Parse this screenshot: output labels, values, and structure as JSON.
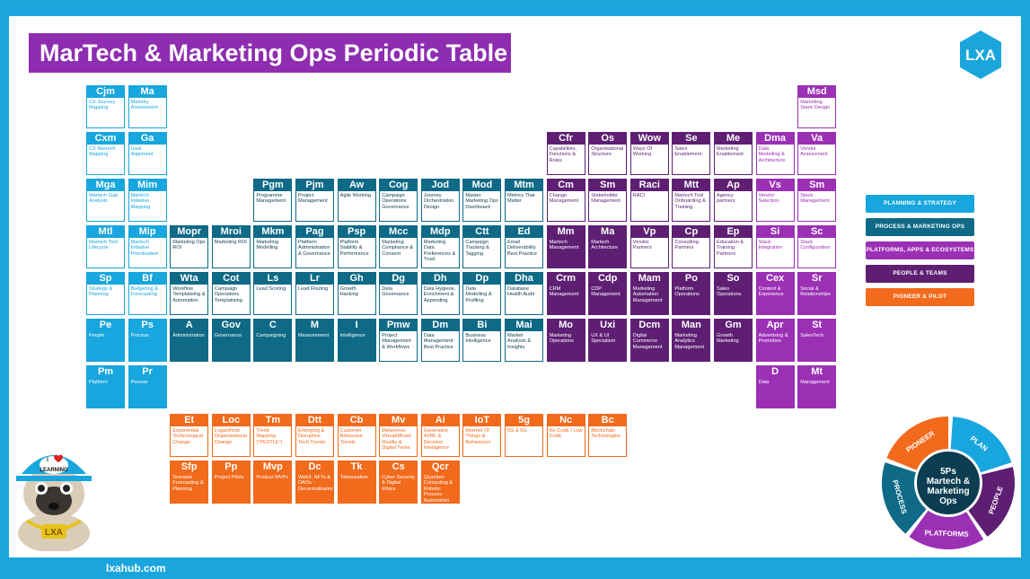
{
  "title": "MarTech & Marketing Ops Periodic Table",
  "logo_text": "LXA",
  "footer": "lxahub.com",
  "colors": {
    "planning": "#17a6dd",
    "process": "#0e6a86",
    "platforms": "#9b30b5",
    "people": "#5e1f73",
    "pioneer": "#f26a1b"
  },
  "legend": [
    {
      "label": "PLANNING & STRATEGY",
      "cat": "plan"
    },
    {
      "label": "PROCESS & MARKETING OPS",
      "cat": "proc"
    },
    {
      "label": "PLATFORMS, APPS & ECOSYSTEMS",
      "cat": "plat"
    },
    {
      "label": "PEOPLE & TEAMS",
      "cat": "ppl"
    },
    {
      "label": "PIONEER & PILOT",
      "cat": "pion"
    }
  ],
  "wheel": {
    "center": [
      "5Ps",
      "Martech &",
      "Marketing",
      "Ops"
    ],
    "segments": [
      "PIONEER",
      "PLAN",
      "PEOPLE",
      "PLATFORMS",
      "PROCESS"
    ]
  },
  "mascot": {
    "cap_line1": "I",
    "cap_line2": "LEARNING",
    "chain": "LXA",
    "cap_icon": "heart-icon"
  },
  "elements": [
    {
      "sym": "Cjm",
      "name": "CX Journey Mapping",
      "cat": "plan",
      "col": 0,
      "row": 0
    },
    {
      "sym": "Ma",
      "name": "Maturity Assessment",
      "cat": "plan",
      "col": 1,
      "row": 0
    },
    {
      "sym": "Msd",
      "name": "Marketing Stack Design",
      "cat": "plat",
      "col": 17,
      "row": 0
    },
    {
      "sym": "Cxm",
      "name": "CX Martech Mapping",
      "cat": "plan",
      "col": 0,
      "row": 1
    },
    {
      "sym": "Ga",
      "name": "Goal Alignment",
      "cat": "plan",
      "col": 1,
      "row": 1
    },
    {
      "sym": "Cfr",
      "name": "Capabilities, Functions & Roles",
      "cat": "ppl",
      "col": 11,
      "row": 1
    },
    {
      "sym": "Os",
      "name": "Organisational Structure",
      "cat": "ppl",
      "col": 12,
      "row": 1
    },
    {
      "sym": "Wow",
      "name": "Ways Of Working",
      "cat": "ppl",
      "col": 13,
      "row": 1
    },
    {
      "sym": "Se",
      "name": "Sales Enablement",
      "cat": "ppl",
      "col": 14,
      "row": 1
    },
    {
      "sym": "Me",
      "name": "Marketing Enablement",
      "cat": "ppl",
      "col": 15,
      "row": 1
    },
    {
      "sym": "Dma",
      "name": "Data Modelling & Architecture",
      "cat": "plat",
      "col": 16,
      "row": 1
    },
    {
      "sym": "Va",
      "name": "Vendor Assessment",
      "cat": "plat",
      "col": 17,
      "row": 1
    },
    {
      "sym": "Mga",
      "name": "Martech Gap Analysis",
      "cat": "plan",
      "col": 0,
      "row": 2
    },
    {
      "sym": "Mim",
      "name": "Martech Initiative Mapping",
      "cat": "plan",
      "col": 1,
      "row": 2
    },
    {
      "sym": "Pgm",
      "name": "Programme Management",
      "cat": "proc",
      "col": 4,
      "row": 2
    },
    {
      "sym": "Pjm",
      "name": "Project Management",
      "cat": "proc",
      "col": 5,
      "row": 2
    },
    {
      "sym": "Aw",
      "name": "Agile Working",
      "cat": "proc",
      "col": 6,
      "row": 2
    },
    {
      "sym": "Cog",
      "name": "Campaign Operations Governance",
      "cat": "proc",
      "col": 7,
      "row": 2
    },
    {
      "sym": "Jod",
      "name": "Journey Orchestration Design",
      "cat": "proc",
      "col": 8,
      "row": 2
    },
    {
      "sym": "Mod",
      "name": "Master Marketing Ops Dashboard",
      "cat": "proc",
      "col": 9,
      "row": 2
    },
    {
      "sym": "Mtm",
      "name": "Metrics That Matter",
      "cat": "proc",
      "col": 10,
      "row": 2
    },
    {
      "sym": "Cm",
      "name": "Change Management",
      "cat": "ppl",
      "col": 11,
      "row": 2
    },
    {
      "sym": "Sm",
      "name": "Stakeholder Management",
      "cat": "ppl",
      "col": 12,
      "row": 2
    },
    {
      "sym": "Raci",
      "name": "RACI",
      "cat": "ppl",
      "col": 13,
      "row": 2
    },
    {
      "sym": "Mtt",
      "name": "Martech Tool Onboarding & Training",
      "cat": "ppl",
      "col": 14,
      "row": 2
    },
    {
      "sym": "Ap",
      "name": "Agency partners",
      "cat": "ppl",
      "col": 15,
      "row": 2
    },
    {
      "sym": "Vs",
      "name": "Vendor Selection",
      "cat": "plat",
      "col": 16,
      "row": 2
    },
    {
      "sym": "Sm",
      "name": "Stack Management",
      "cat": "plat",
      "col": 17,
      "row": 2
    },
    {
      "sym": "Mtl",
      "name": "Martech Tool Lifecycle",
      "cat": "plan",
      "col": 0,
      "row": 3
    },
    {
      "sym": "Mip",
      "name": "Martech Initiative Prioritisation",
      "cat": "plan",
      "col": 1,
      "row": 3
    },
    {
      "sym": "Mopr",
      "name": "Marketing Ops ROI",
      "cat": "proc",
      "col": 2,
      "row": 3
    },
    {
      "sym": "Mroi",
      "name": "Marketing ROI",
      "cat": "proc",
      "col": 3,
      "row": 3
    },
    {
      "sym": "Mkm",
      "name": "Marketing Modelling",
      "cat": "proc",
      "col": 4,
      "row": 3
    },
    {
      "sym": "Pag",
      "name": "Platform Administration & Governance",
      "cat": "proc",
      "col": 5,
      "row": 3
    },
    {
      "sym": "Psp",
      "name": "Platform Stability & Performance",
      "cat": "proc",
      "col": 6,
      "row": 3
    },
    {
      "sym": "Mcc",
      "name": "Marketing Compliance & Consent",
      "cat": "proc",
      "col": 7,
      "row": 3
    },
    {
      "sym": "Mdp",
      "name": "Marketing Data Preferences & Trust",
      "cat": "proc",
      "col": 8,
      "row": 3
    },
    {
      "sym": "Ctt",
      "name": "Campaign Tracking & Tagging",
      "cat": "proc",
      "col": 9,
      "row": 3
    },
    {
      "sym": "Ed",
      "name": "Email Deliverability Best Practice",
      "cat": "proc",
      "col": 10,
      "row": 3
    },
    {
      "sym": "Mm",
      "name": "Martech Management",
      "cat": "ppl",
      "col": 11,
      "row": 3,
      "fill": true
    },
    {
      "sym": "Ma",
      "name": "Martech Architecture",
      "cat": "ppl",
      "col": 12,
      "row": 3,
      "fill": true
    },
    {
      "sym": "Vp",
      "name": "Vendor Partners",
      "cat": "ppl",
      "col": 13,
      "row": 3
    },
    {
      "sym": "Cp",
      "name": "Consulting Partners",
      "cat": "ppl",
      "col": 14,
      "row": 3
    },
    {
      "sym": "Ep",
      "name": "Education & Training Partners",
      "cat": "ppl",
      "col": 15,
      "row": 3
    },
    {
      "sym": "Si",
      "name": "Stack Integration",
      "cat": "plat",
      "col": 16,
      "row": 3
    },
    {
      "sym": "Sc",
      "name": "Stack Configuration",
      "cat": "plat",
      "col": 17,
      "row": 3
    },
    {
      "sym": "Sp",
      "name": "Strategy & Planning",
      "cat": "plan",
      "col": 0,
      "row": 4
    },
    {
      "sym": "Bf",
      "name": "Budgeting & Forecasting",
      "cat": "plan",
      "col": 1,
      "row": 4
    },
    {
      "sym": "Wta",
      "name": "Workflow Templatising & Automation",
      "cat": "proc",
      "col": 2,
      "row": 4
    },
    {
      "sym": "Cot",
      "name": "Campaign Operations Templatising",
      "cat": "proc",
      "col": 3,
      "row": 4
    },
    {
      "sym": "Ls",
      "name": "Lead Scoring",
      "cat": "proc",
      "col": 4,
      "row": 4
    },
    {
      "sym": "Lr",
      "name": "Lead Routing",
      "cat": "proc",
      "col": 5,
      "row": 4
    },
    {
      "sym": "Gh",
      "name": "Growth Hacking",
      "cat": "proc",
      "col": 6,
      "row": 4
    },
    {
      "sym": "Dg",
      "name": "Data Governance",
      "cat": "proc",
      "col": 7,
      "row": 4
    },
    {
      "sym": "Dh",
      "name": "Data Hygiene, Enrichment & Appending",
      "cat": "proc",
      "col": 8,
      "row": 4
    },
    {
      "sym": "Dp",
      "name": "Data Modelling & Profiling",
      "cat": "proc",
      "col": 9,
      "row": 4
    },
    {
      "sym": "Dha",
      "name": "Database Health Audit",
      "cat": "proc",
      "col": 10,
      "row": 4
    },
    {
      "sym": "Crm",
      "name": "CRM Management",
      "cat": "ppl",
      "col": 11,
      "row": 4,
      "fill": true
    },
    {
      "sym": "Cdp",
      "name": "CDP Management",
      "cat": "ppl",
      "col": 12,
      "row": 4,
      "fill": true
    },
    {
      "sym": "Mam",
      "name": "Marketing Automation Management",
      "cat": "ppl",
      "col": 13,
      "row": 4,
      "fill": true
    },
    {
      "sym": "Po",
      "name": "Platform Operations",
      "cat": "ppl",
      "col": 14,
      "row": 4,
      "fill": true
    },
    {
      "sym": "So",
      "name": "Sales Operations",
      "cat": "ppl",
      "col": 15,
      "row": 4,
      "fill": true
    },
    {
      "sym": "Cex",
      "name": "Content & Experience",
      "cat": "plat",
      "col": 16,
      "row": 4,
      "fill": true
    },
    {
      "sym": "Sr",
      "name": "Social & Relationships",
      "cat": "plat",
      "col": 17,
      "row": 4,
      "fill": true
    },
    {
      "sym": "Pe",
      "name": "People",
      "cat": "plan",
      "col": 0,
      "row": 5,
      "fill": true
    },
    {
      "sym": "Ps",
      "name": "Process",
      "cat": "plan",
      "col": 1,
      "row": 5,
      "fill": true
    },
    {
      "sym": "A",
      "name": "Administration",
      "cat": "proc",
      "col": 2,
      "row": 5,
      "fill": true
    },
    {
      "sym": "Gov",
      "name": "Governance",
      "cat": "proc",
      "col": 3,
      "row": 5,
      "fill": true
    },
    {
      "sym": "C",
      "name": "Campaigning",
      "cat": "proc",
      "col": 4,
      "row": 5,
      "fill": true
    },
    {
      "sym": "M",
      "name": "Measurement",
      "cat": "proc",
      "col": 5,
      "row": 5,
      "fill": true
    },
    {
      "sym": "I",
      "name": "Intelligence",
      "cat": "proc",
      "col": 6,
      "row": 5,
      "fill": true
    },
    {
      "sym": "Pmw",
      "name": "Project Management & Workflows",
      "cat": "proc",
      "col": 7,
      "row": 5
    },
    {
      "sym": "Dm",
      "name": "Data Management Best Practice",
      "cat": "proc",
      "col": 8,
      "row": 5
    },
    {
      "sym": "Bi",
      "name": "Business Intelligence",
      "cat": "proc",
      "col": 9,
      "row": 5
    },
    {
      "sym": "Mai",
      "name": "Market Analysis & Insights",
      "cat": "proc",
      "col": 10,
      "row": 5
    },
    {
      "sym": "Mo",
      "name": "Marketing Operations",
      "cat": "ppl",
      "col": 11,
      "row": 5,
      "fill": true
    },
    {
      "sym": "Uxi",
      "name": "UX & UI Specialism",
      "cat": "ppl",
      "col": 12,
      "row": 5,
      "fill": true
    },
    {
      "sym": "Dcm",
      "name": "Digital Commerce Management",
      "cat": "ppl",
      "col": 13,
      "row": 5,
      "fill": true
    },
    {
      "sym": "Man",
      "name": "Marketing Analytics Management",
      "cat": "ppl",
      "col": 14,
      "row": 5,
      "fill": true
    },
    {
      "sym": "Gm",
      "name": "Growth Marketing",
      "cat": "ppl",
      "col": 15,
      "row": 5,
      "fill": true
    },
    {
      "sym": "Apr",
      "name": "Advertising & Promotion",
      "cat": "plat",
      "col": 16,
      "row": 5,
      "fill": true
    },
    {
      "sym": "St",
      "name": "SalesTech",
      "cat": "plat",
      "col": 17,
      "row": 5,
      "fill": true
    },
    {
      "sym": "Pm",
      "name": "Platform",
      "cat": "plan",
      "col": 0,
      "row": 6,
      "fill": true
    },
    {
      "sym": "Pr",
      "name": "Pioneer",
      "cat": "plan",
      "col": 1,
      "row": 6,
      "fill": true
    },
    {
      "sym": "D",
      "name": "Data",
      "cat": "plat",
      "col": 16,
      "row": 6,
      "fill": true
    },
    {
      "sym": "Mt",
      "name": "Management",
      "cat": "plat",
      "col": 17,
      "row": 6,
      "fill": true
    },
    {
      "sym": "Et",
      "name": "Exponential Technological Change",
      "cat": "pion",
      "col": 2,
      "row": 7
    },
    {
      "sym": "Loc",
      "name": "Logarithmic Organisational Change",
      "cat": "pion",
      "col": 3,
      "row": 7
    },
    {
      "sym": "Tm",
      "name": "Trend Mapping (\"PESTLE\")",
      "cat": "pion",
      "col": 4,
      "row": 7
    },
    {
      "sym": "Dtt",
      "name": "Emerging & Disruptive Tech Trends",
      "cat": "pion",
      "col": 5,
      "row": 7
    },
    {
      "sym": "Cb",
      "name": "Customer Behaviour Trends",
      "cat": "pion",
      "col": 6,
      "row": 7
    },
    {
      "sym": "Mv",
      "name": "Metaverse, Virtual/Mixed Reality & Digital Twins",
      "cat": "pion",
      "col": 7,
      "row": 7
    },
    {
      "sym": "Ai",
      "name": "Generative AI/ML & Decision Intelligence",
      "cat": "pion",
      "col": 8,
      "row": 7
    },
    {
      "sym": "IoT",
      "name": "Internet Of Things & Behaviours",
      "cat": "pion",
      "col": 9,
      "row": 7
    },
    {
      "sym": "5g",
      "name": "5G & 6G",
      "cat": "pion",
      "col": 10,
      "row": 7
    },
    {
      "sym": "Nc",
      "name": "No Code / Low Code",
      "cat": "pion",
      "col": 11,
      "row": 7
    },
    {
      "sym": "Bc",
      "name": "Blockchain Technologies",
      "cat": "pion",
      "col": 12,
      "row": 7
    },
    {
      "sym": "Sfp",
      "name": "Scenario Forecasting & Planning",
      "cat": "pion",
      "col": 2,
      "row": 8,
      "fill": true
    },
    {
      "sym": "Pp",
      "name": "Project Pilots",
      "cat": "pion",
      "col": 3,
      "row": 8,
      "fill": true
    },
    {
      "sym": "Mvp",
      "name": "Product MVPs",
      "cat": "pion",
      "col": 4,
      "row": 8,
      "fill": true
    },
    {
      "sym": "Dc",
      "name": "Web3, NFTs & DAOs - Decentralisation",
      "cat": "pion",
      "col": 5,
      "row": 8,
      "fill": true
    },
    {
      "sym": "Tk",
      "name": "Tokenisation",
      "cat": "pion",
      "col": 6,
      "row": 8,
      "fill": true
    },
    {
      "sym": "Cs",
      "name": "Cyber Security & Digital Ethics",
      "cat": "pion",
      "col": 7,
      "row": 8,
      "fill": true
    },
    {
      "sym": "Qcr",
      "name": "Quantum Computing & Robotic Process Automation",
      "cat": "pion",
      "col": 8,
      "row": 8,
      "fill": true
    }
  ]
}
